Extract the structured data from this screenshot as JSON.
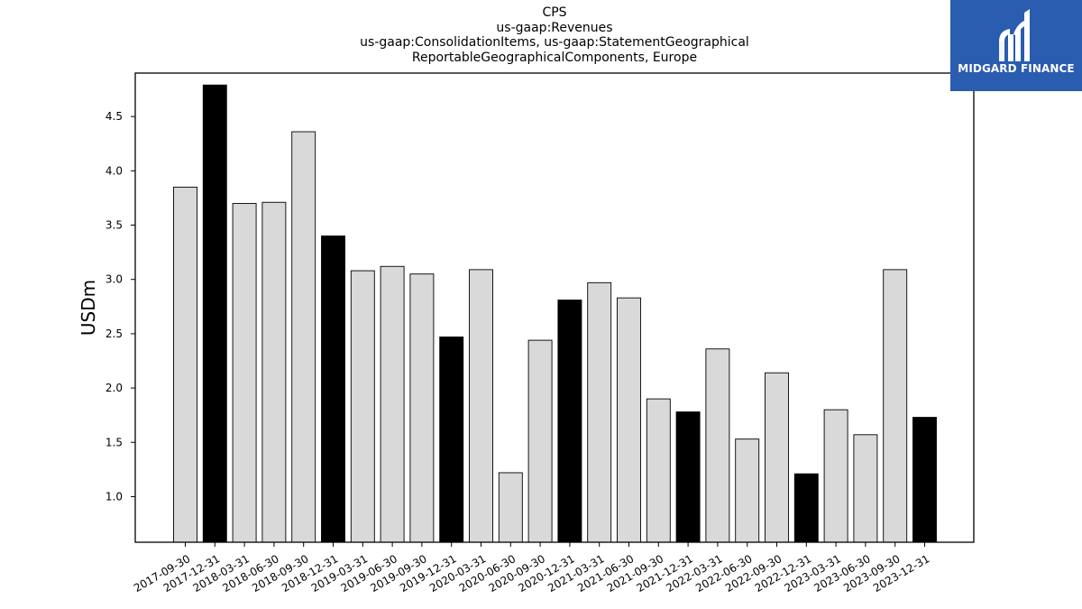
{
  "header": {
    "title_lines": [
      "CPS",
      "us-gaap:Revenues",
      "us-gaap:ConsolidationItems, us-gaap:StatementGeographical",
      "ReportableGeographicalComponents, Europe"
    ]
  },
  "logo": {
    "text": "MIDGARD FINANCE",
    "background": "#2a5cb0",
    "icon": "midgard-logo-icon"
  },
  "chart_data": {
    "type": "bar",
    "ylabel": "USDm",
    "xlabel": "",
    "ylim": [
      0.58,
      4.9
    ],
    "yticks": [
      1.0,
      1.5,
      2.0,
      2.5,
      3.0,
      3.5,
      4.0,
      4.5
    ],
    "grid": false,
    "colors": {
      "quarter": "#d9d9d9",
      "year_end": "#000000",
      "edge": "#000000"
    },
    "categories": [
      "2017-09-30",
      "2017-12-31",
      "2018-03-31",
      "2018-06-30",
      "2018-09-30",
      "2018-12-31",
      "2019-03-31",
      "2019-06-30",
      "2019-09-30",
      "2019-12-31",
      "2020-03-31",
      "2020-06-30",
      "2020-09-30",
      "2020-12-31",
      "2021-03-31",
      "2021-06-30",
      "2021-09-30",
      "2021-12-31",
      "2022-03-31",
      "2022-06-30",
      "2022-09-30",
      "2022-12-31",
      "2023-03-31",
      "2023-06-30",
      "2023-09-30",
      "2023-12-31"
    ],
    "values": [
      3.85,
      4.79,
      3.7,
      3.71,
      4.36,
      3.4,
      3.08,
      3.12,
      3.05,
      2.47,
      3.09,
      1.22,
      2.44,
      2.81,
      2.97,
      2.83,
      1.9,
      1.78,
      2.36,
      1.53,
      2.14,
      1.21,
      1.8,
      1.57,
      3.09,
      1.73
    ]
  }
}
